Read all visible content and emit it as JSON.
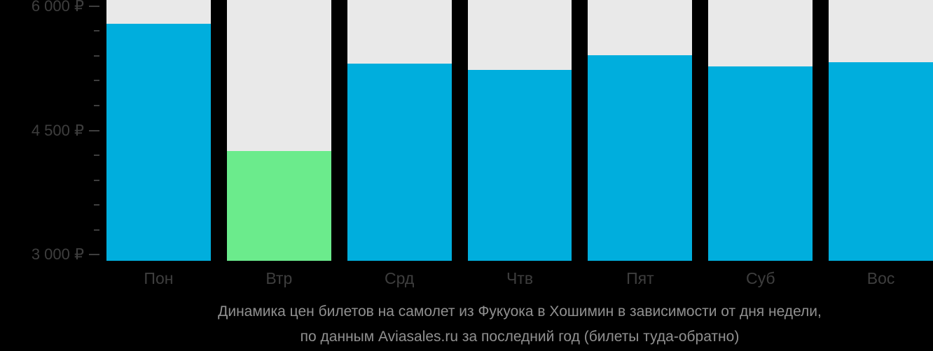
{
  "colors": {
    "background": "#000000",
    "bar": "#00AEDD",
    "bar_min": "#6BEB8C",
    "column_bg": "#E9E9E9",
    "axis_text": "#3E3E3E",
    "caption_text": "#909090"
  },
  "chart_data": {
    "type": "bar",
    "categories": [
      "Пон",
      "Втр",
      "Срд",
      "Чтв",
      "Пят",
      "Суб",
      "Вос"
    ],
    "values": [
      5790,
      4250,
      5310,
      5230,
      5410,
      5270,
      5320
    ],
    "min_value_index": 1,
    "currency": "₽",
    "ylim": [
      2924,
      6076
    ],
    "yticks_major": [
      {
        "value": 3000,
        "label": "3 000 ₽"
      },
      {
        "value": 4500,
        "label": "4 500 ₽"
      },
      {
        "value": 6000,
        "label": "6 000 ₽"
      }
    ],
    "ytick_minor_step": 300,
    "grid": "off",
    "legend": "none",
    "caption_line1": "Динамика цен билетов на самолет из Фукуока в Хошимин в зависимости от дня недели,",
    "caption_line2": "по данным Aviasales.ru за последний год (билеты туда-обратно)"
  }
}
